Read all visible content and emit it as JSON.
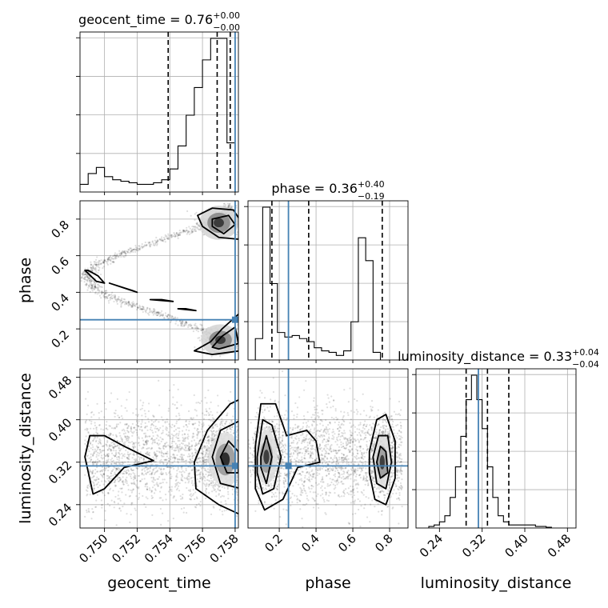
{
  "chart_data": {
    "type": "corner",
    "truth_color": "#4682b4",
    "contour_color": "#000000",
    "parameters": [
      {
        "name": "geocent_time",
        "axis_label": "geocent_time",
        "range": [
          0.7485,
          0.7582
        ],
        "ticks": [
          0.75,
          0.752,
          0.754,
          0.756,
          0.758
        ],
        "tick_labels": [
          "0.750",
          "0.752",
          "0.754",
          "0.756",
          "0.758"
        ],
        "title_main": "geocent_time = 0.76",
        "title_sup": "+0.00",
        "title_sub": "−0.00",
        "median": 0.7569,
        "quantiles": [
          0.7539,
          0.7569,
          0.7577
        ],
        "truth": 0.758,
        "hist_bin_edges_start": 0.7485,
        "hist_bin_width": 0.0005,
        "hist_values": [
          0.05,
          0.12,
          0.16,
          0.1,
          0.08,
          0.07,
          0.06,
          0.05,
          0.05,
          0.06,
          0.08,
          0.15,
          0.3,
          0.5,
          0.68,
          0.86,
          1.0,
          1.0,
          0.32
        ]
      },
      {
        "name": "phase",
        "axis_label": "phase",
        "range": [
          0.03,
          0.9
        ],
        "ticks": [
          0.2,
          0.4,
          0.6,
          0.8
        ],
        "tick_labels": [
          "0.2",
          "0.4",
          "0.6",
          "0.8"
        ],
        "title_main": "phase = 0.36",
        "title_sup": "+0.40",
        "title_sub": "−0.19",
        "median": 0.36,
        "quantiles": [
          0.16,
          0.36,
          0.76
        ],
        "truth": 0.25,
        "hist_bin_edges_start": 0.07,
        "hist_bin_width": 0.04,
        "hist_values": [
          0.14,
          1.0,
          0.5,
          0.18,
          0.15,
          0.16,
          0.14,
          0.12,
          0.08,
          0.06,
          0.05,
          0.03,
          0.06,
          0.25,
          0.8,
          0.65,
          0.05
        ]
      },
      {
        "name": "luminosity_distance",
        "axis_label": "luminosity_distance",
        "range": [
          0.196,
          0.496
        ],
        "ticks": [
          0.24,
          0.32,
          0.4,
          0.48
        ],
        "tick_labels": [
          "0.24",
          "0.32",
          "0.40",
          "0.48"
        ],
        "title_main": "luminosity_distance = 0.33",
        "title_sup": "+0.04",
        "title_sub": "−0.04",
        "median": 0.33,
        "quantiles": [
          0.29,
          0.33,
          0.37
        ],
        "truth": 0.313,
        "hist_bin_edges_start": 0.22,
        "hist_bin_width": 0.01,
        "hist_values": [
          0.01,
          0.02,
          0.04,
          0.08,
          0.2,
          0.4,
          0.6,
          0.84,
          1.0,
          0.84,
          0.65,
          0.4,
          0.2,
          0.08,
          0.04,
          0.02,
          0.02,
          0.02,
          0.02,
          0.02,
          0.01,
          0.01,
          0.005
        ]
      }
    ],
    "grid": true,
    "scatter_points_shown": true,
    "contour_levels": 3
  }
}
